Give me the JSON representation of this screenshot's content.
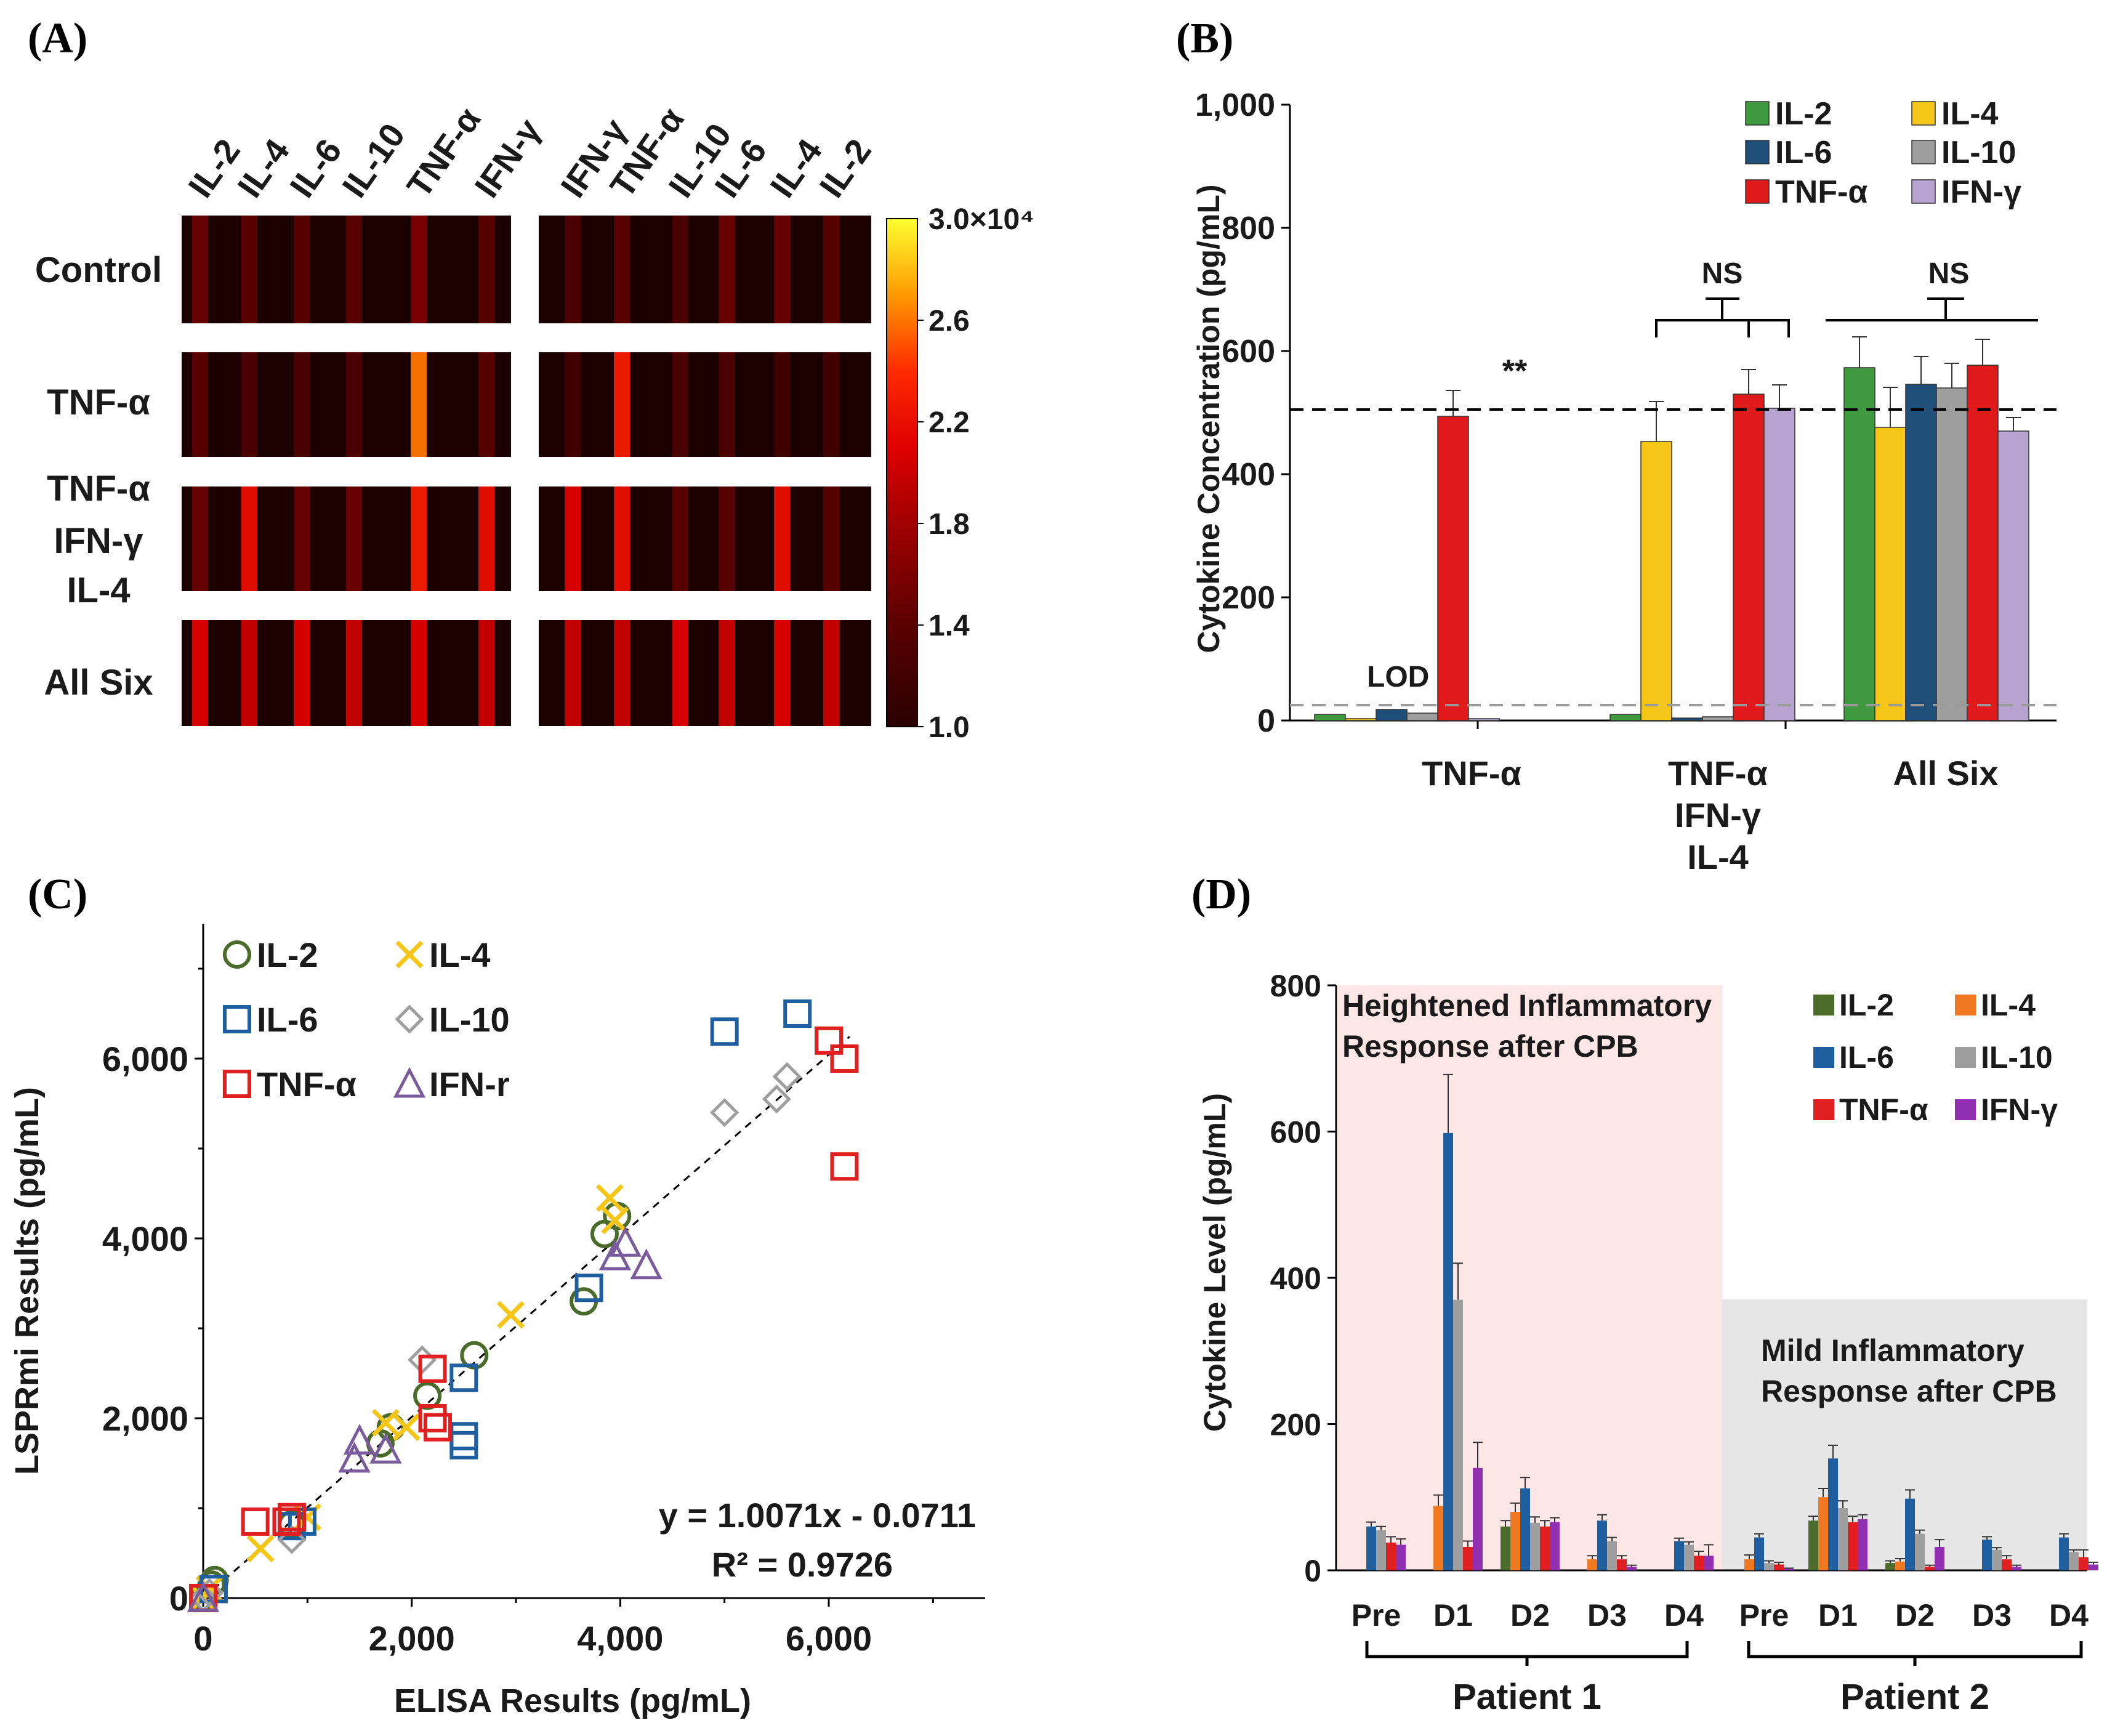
{
  "panels": {
    "A": {
      "label": "(A)"
    },
    "B": {
      "label": "(B)"
    },
    "C": {
      "label": "(C)"
    },
    "D": {
      "label": "(D)"
    }
  },
  "colors": {
    "IL-2": "#3f9a3f",
    "IL-4": "#f5c518",
    "IL-6": "#1f4e79",
    "IL-10": "#9e9e9e",
    "TNF-α": "#e0191b",
    "IFN-γ": "#b7a3cf"
  },
  "chart_data": [
    {
      "id": "A",
      "type": "heatmap",
      "left_columns": [
        "IL-2",
        "IL-4",
        "IL-6",
        "IL-10",
        "TNF-α",
        "IFN-γ"
      ],
      "right_columns": [
        "IFN-γ",
        "TNF-α",
        "IL-10",
        "IL-6",
        "IL-4",
        "IL-2"
      ],
      "rows": [
        {
          "label": "Control",
          "lines": [
            "Control"
          ],
          "left": [
            1.5,
            1.4,
            1.4,
            1.4,
            1.6,
            1.4
          ],
          "right": [
            1.3,
            1.4,
            1.3,
            1.5,
            1.5,
            1.4
          ]
        },
        {
          "label": "TNF-α",
          "lines": [
            "TNF-α"
          ],
          "left": [
            1.4,
            1.3,
            1.3,
            1.3,
            2.6,
            1.4
          ],
          "right": [
            1.2,
            2.3,
            1.3,
            1.3,
            1.2,
            1.2
          ]
        },
        {
          "label": "TNF-α IFN-γ IL-4",
          "lines": [
            "TNF-α",
            "IFN-γ",
            "IL-4"
          ],
          "left": [
            1.5,
            2.2,
            1.5,
            1.5,
            2.3,
            2.2
          ],
          "right": [
            2.1,
            2.2,
            1.4,
            1.4,
            2.2,
            1.4
          ]
        },
        {
          "label": "All Six",
          "lines": [
            "All Six"
          ],
          "left": [
            2.1,
            2.0,
            2.1,
            2.0,
            2.1,
            2.0
          ],
          "right": [
            2.0,
            2.0,
            2.1,
            2.0,
            2.1,
            2.0
          ]
        }
      ],
      "colorbar": {
        "min": 1.0,
        "max": 3.0,
        "ticks": [
          "1.0",
          "1.4",
          "1.8",
          "2.2",
          "2.6"
        ],
        "top_label": "3.0×10⁴"
      }
    },
    {
      "id": "B",
      "type": "bar",
      "ylabel": "Cytokine Concentration (pg/mL)",
      "ylim": [
        0,
        1000
      ],
      "yticks": [
        "0",
        "200",
        "400",
        "600",
        "800",
        "1,000"
      ],
      "groups": [
        {
          "label": "TNF-α",
          "lines": [
            "TNF-α"
          ]
        },
        {
          "label": "TNF-α IFN-γ IL-4",
          "lines": [
            "TNF-α",
            "IFN-γ",
            "IL-4"
          ]
        },
        {
          "label": "All Six",
          "lines": [
            "All Six"
          ]
        }
      ],
      "series": [
        {
          "name": "IL-2",
          "values": [
            10,
            10,
            573
          ],
          "errors": [
            0,
            0,
            50
          ]
        },
        {
          "name": "IL-4",
          "values": [
            3,
            453,
            476
          ],
          "errors": [
            0,
            65,
            65
          ]
        },
        {
          "name": "IL-6",
          "values": [
            18,
            4,
            546
          ],
          "errors": [
            0,
            0,
            45
          ]
        },
        {
          "name": "IL-10",
          "values": [
            12,
            6,
            540
          ],
          "errors": [
            0,
            0,
            40
          ]
        },
        {
          "name": "TNF-α",
          "values": [
            494,
            530,
            577
          ],
          "errors": [
            42,
            40,
            42
          ]
        },
        {
          "name": "IFN-γ",
          "values": [
            3,
            507,
            470
          ],
          "errors": [
            0,
            38,
            22
          ]
        }
      ],
      "reference_lines": [
        {
          "name": "target",
          "value": 505,
          "style": "black-dashed"
        },
        {
          "name": "LOD",
          "value": 25,
          "style": "gray-dashed",
          "label": "LOD"
        }
      ],
      "annotations": {
        "stars": "**",
        "ns": "NS"
      }
    },
    {
      "id": "C",
      "type": "scatter",
      "xlabel": "ELISA Results (pg/mL)",
      "ylabel": "LSPRmi Results (pg/mL)",
      "xlim": [
        0,
        7500
      ],
      "ylim": [
        0,
        7500
      ],
      "xticks": [
        "0",
        "2,000",
        "4,000",
        "6,000"
      ],
      "yticks": [
        "0",
        "2,000",
        "4,000",
        "6,000"
      ],
      "equation": "y = 1.0071x - 0.0711",
      "r2": "R² = 0.9726",
      "series": [
        {
          "name": "IL-2",
          "marker": "circle",
          "color": "#4a6b2a",
          "points": [
            [
              0,
              0
            ],
            [
              80,
              150
            ],
            [
              110,
              200
            ],
            [
              850,
              820
            ],
            [
              1700,
              1720
            ],
            [
              1800,
              1900
            ],
            [
              2150,
              2250
            ],
            [
              2600,
              2700
            ],
            [
              3650,
              3300
            ],
            [
              3850,
              4050
            ],
            [
              3970,
              4250
            ]
          ]
        },
        {
          "name": "IL-4",
          "marker": "x",
          "color": "#f5c518",
          "points": [
            [
              0,
              0
            ],
            [
              60,
              100
            ],
            [
              550,
              550
            ],
            [
              1000,
              900
            ],
            [
              1750,
              1950
            ],
            [
              1950,
              1900
            ],
            [
              2950,
              3150
            ],
            [
              3900,
              4450
            ],
            [
              3950,
              4200
            ]
          ]
        },
        {
          "name": "IL-6",
          "marker": "square",
          "color": "#1f5fa0",
          "points": [
            [
              0,
              0
            ],
            [
              100,
              100
            ],
            [
              850,
              800
            ],
            [
              950,
              850
            ],
            [
              2500,
              1800
            ],
            [
              2500,
              1700
            ],
            [
              2500,
              2450
            ],
            [
              3700,
              3450
            ],
            [
              5000,
              6300
            ],
            [
              5700,
              6500
            ]
          ]
        },
        {
          "name": "IL-10",
          "marker": "diamond",
          "color": "#9e9e9e",
          "points": [
            [
              0,
              0
            ],
            [
              60,
              60
            ],
            [
              850,
              650
            ],
            [
              2100,
              2650
            ],
            [
              5000,
              5400
            ],
            [
              5500,
              5550
            ],
            [
              5600,
              5800
            ]
          ]
        },
        {
          "name": "TNF-α",
          "marker": "square",
          "color": "#e02020",
          "points": [
            [
              0,
              0
            ],
            [
              500,
              850
            ],
            [
              800,
              850
            ],
            [
              850,
              900
            ],
            [
              2200,
              2550
            ],
            [
              2200,
              2000
            ],
            [
              2250,
              1900
            ],
            [
              6000,
              6200
            ],
            [
              6150,
              6000
            ],
            [
              6150,
              4800
            ]
          ]
        },
        {
          "name": "IFN-r",
          "marker": "triangle",
          "color": "#7a5c9e",
          "points": [
            [
              0,
              0
            ],
            [
              1450,
              1550
            ],
            [
              1500,
              1750
            ],
            [
              1750,
              1650
            ],
            [
              3950,
              3800
            ],
            [
              4050,
              3950
            ],
            [
              4250,
              3700
            ]
          ]
        }
      ]
    },
    {
      "id": "D",
      "type": "bar",
      "ylabel": "Cytokine Level (pg/mL)",
      "ylim": [
        0,
        800
      ],
      "yticks": [
        "0",
        "200",
        "400",
        "600",
        "800"
      ],
      "categories": [
        "Pre",
        "D1",
        "D2",
        "D3",
        "D4",
        "Pre",
        "D1",
        "D2",
        "D3",
        "D4"
      ],
      "patients": [
        "Patient 1",
        "Patient 2"
      ],
      "regions": [
        {
          "lines": [
            "Heightened Inflammatory",
            "Response after CPB"
          ],
          "color": "#fde6e6"
        },
        {
          "lines": [
            "Mild Inflammatory",
            "Response after CPB"
          ],
          "color": "#e6e6e6"
        }
      ],
      "series": [
        {
          "name": "IL-2",
          "color": "#4a6b2a",
          "values": [
            0,
            0,
            60,
            0,
            0,
            0,
            68,
            10,
            0,
            0
          ],
          "errors": [
            0,
            0,
            8,
            0,
            0,
            0,
            6,
            3,
            0,
            0
          ]
        },
        {
          "name": "IL-4",
          "color": "#f07820",
          "values": [
            0,
            88,
            80,
            15,
            0,
            15,
            100,
            12,
            0,
            0
          ],
          "errors": [
            0,
            15,
            12,
            5,
            0,
            6,
            12,
            4,
            0,
            0
          ]
        },
        {
          "name": "IL-6",
          "color": "#1f5fa0",
          "values": [
            60,
            598,
            112,
            68,
            40,
            45,
            153,
            98,
            42,
            45
          ],
          "errors": [
            6,
            80,
            15,
            8,
            4,
            5,
            18,
            12,
            4,
            5
          ]
        },
        {
          "name": "IL-10",
          "color": "#9e9e9e",
          "values": [
            55,
            370,
            65,
            40,
            35,
            10,
            85,
            50,
            28,
            25
          ],
          "errors": [
            5,
            50,
            8,
            5,
            4,
            3,
            10,
            5,
            3,
            3
          ]
        },
        {
          "name": "TNF-α",
          "color": "#e02020",
          "values": [
            38,
            32,
            60,
            15,
            20,
            8,
            66,
            5,
            15,
            18
          ],
          "errors": [
            8,
            8,
            8,
            5,
            6,
            3,
            8,
            2,
            5,
            10
          ]
        },
        {
          "name": "IFN-γ",
          "color": "#9030b0",
          "values": [
            35,
            140,
            66,
            5,
            20,
            2,
            70,
            32,
            5,
            8
          ],
          "errors": [
            8,
            35,
            6,
            2,
            15,
            1,
            6,
            10,
            2,
            3
          ]
        }
      ]
    }
  ]
}
